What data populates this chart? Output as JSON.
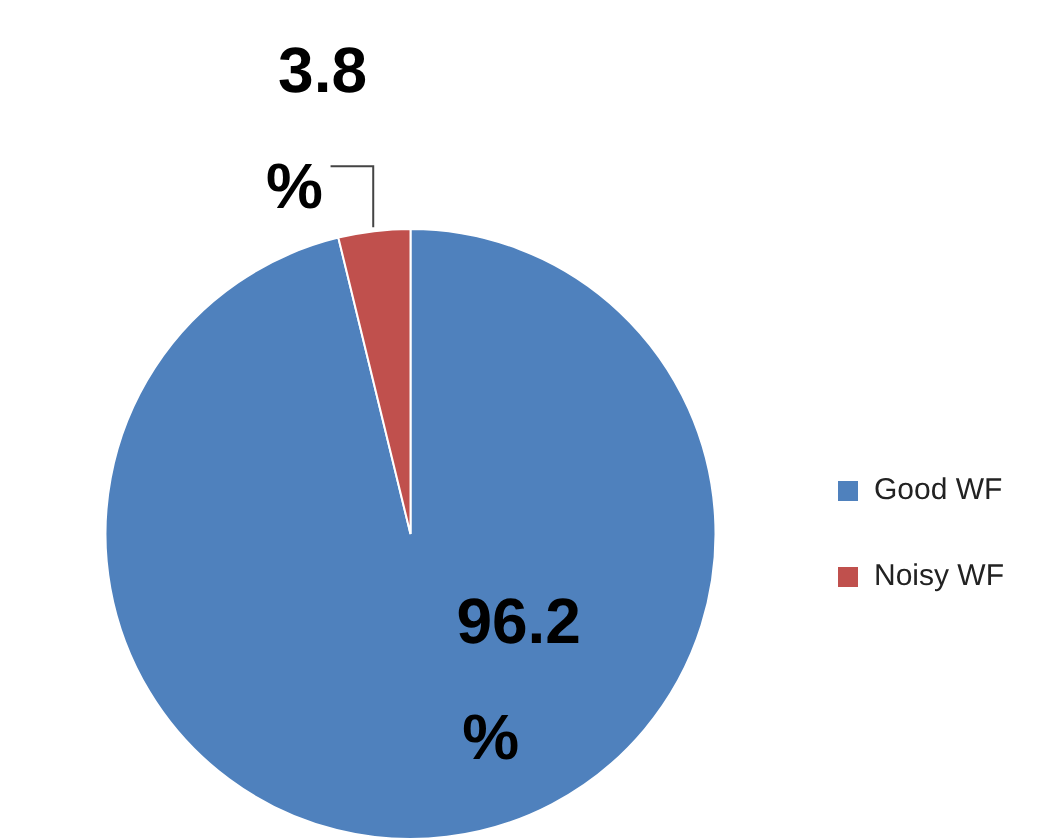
{
  "chart_data": {
    "type": "pie",
    "categories": [
      "Good WF",
      "Noisy WF"
    ],
    "values": [
      96.2,
      3.8
    ],
    "colors": [
      "#4f81bd",
      "#c0504d"
    ],
    "value_labels": [
      "96.2%",
      "3.8%"
    ],
    "legend": "right"
  }
}
